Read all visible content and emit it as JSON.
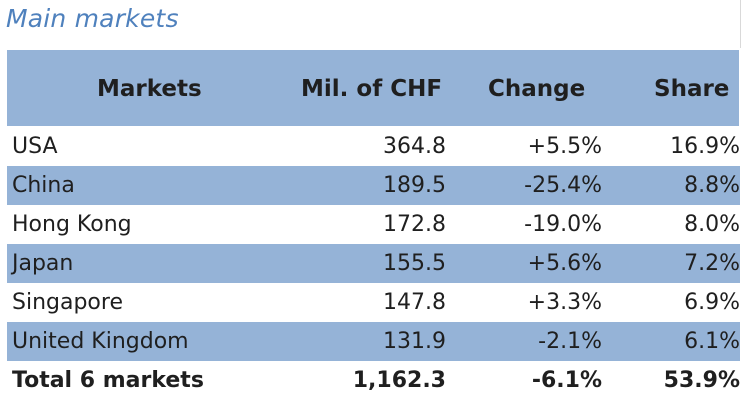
{
  "chart_data": {
    "type": "table",
    "title": "Main markets",
    "columns": [
      "Markets",
      "Mil. of CHF",
      "Change",
      "Share"
    ],
    "rows": [
      [
        "USA",
        "364.8",
        "+5.5%",
        "16.9%"
      ],
      [
        "China",
        "189.5",
        "-25.4%",
        "8.8%"
      ],
      [
        "Hong Kong",
        "172.8",
        "-19.0%",
        "8.0%"
      ],
      [
        "Japan",
        "155.5",
        "+5.6%",
        "7.2%"
      ],
      [
        "Singapore",
        "147.8",
        "+3.3%",
        "6.9%"
      ],
      [
        "United Kingdom",
        "131.9",
        "-2.1%",
        "6.1%"
      ]
    ],
    "total": [
      "Total 6 markets",
      "1,162.3",
      "-6.1%",
      "53.9%"
    ]
  },
  "colors": {
    "title": "#4f81bd",
    "band": "#95b3d7",
    "text": "#1f1f1f"
  }
}
